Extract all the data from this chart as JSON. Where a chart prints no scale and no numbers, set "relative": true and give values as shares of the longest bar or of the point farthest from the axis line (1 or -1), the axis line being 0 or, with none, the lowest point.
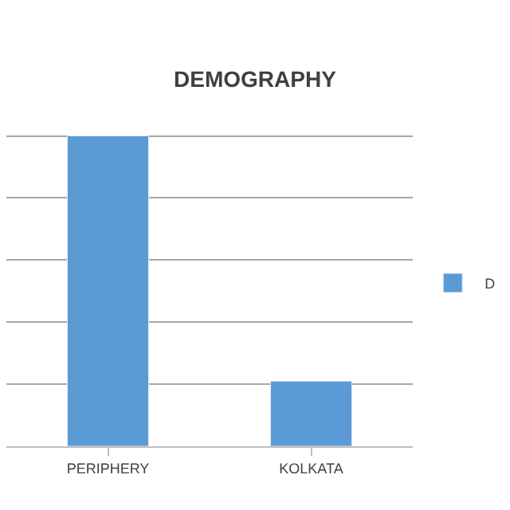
{
  "chart_data": {
    "type": "bar",
    "title": "DEMOGRAPHY",
    "categories": [
      "PERIPHERY",
      "KOLKATA"
    ],
    "relative": true,
    "series": [
      {
        "name": "D",
        "color": "#5b9bd5",
        "values": [
          1,
          0.21
        ]
      }
    ],
    "grid": "y",
    "legend": "right"
  }
}
